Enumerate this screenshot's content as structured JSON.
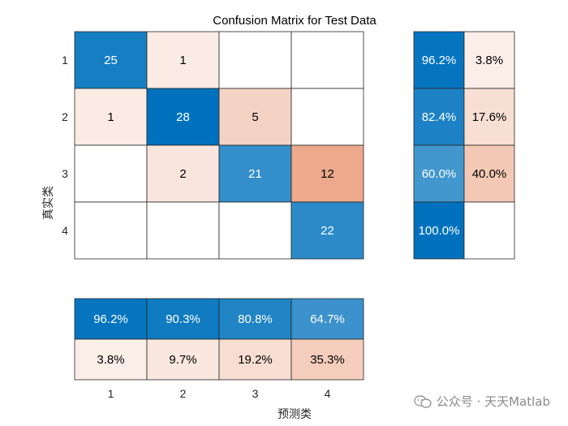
{
  "chart_data": {
    "type": "heatmap",
    "title": "Confusion Matrix for Test Data",
    "xlabel": "预测类",
    "ylabel": "真实类",
    "classes": [
      "1",
      "2",
      "3",
      "4"
    ],
    "matrix": [
      [
        25,
        1,
        null,
        null
      ],
      [
        1,
        28,
        5,
        null
      ],
      [
        null,
        2,
        21,
        12
      ],
      [
        null,
        null,
        null,
        22
      ]
    ],
    "row_summary": [
      [
        "96.2%",
        "3.8%"
      ],
      [
        "82.4%",
        "17.6%"
      ],
      [
        "60.0%",
        "40.0%"
      ],
      [
        "100.0%",
        ""
      ]
    ],
    "row_summary_values": [
      [
        96.2,
        3.8
      ],
      [
        82.4,
        17.6
      ],
      [
        60.0,
        40.0
      ],
      [
        100.0,
        0
      ]
    ],
    "column_summary": [
      [
        "96.2%",
        "90.3%",
        "80.8%",
        "64.7%"
      ],
      [
        "3.8%",
        "9.7%",
        "19.2%",
        "35.3%"
      ]
    ],
    "column_summary_values": [
      [
        96.2,
        90.3,
        80.8,
        64.7
      ],
      [
        3.8,
        9.7,
        19.2,
        35.3
      ]
    ],
    "colors": {
      "correct": "#0072bd",
      "incorrect": "#d95319",
      "grid": "#262626"
    }
  },
  "watermark": {
    "text": "公众号 · 天天Matlab",
    "icon": "wechat-icon"
  }
}
